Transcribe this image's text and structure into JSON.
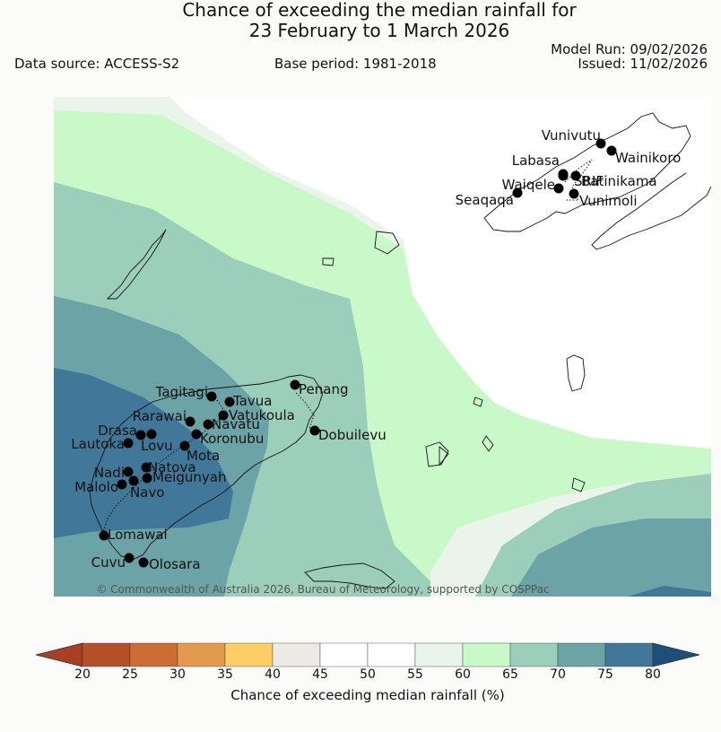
{
  "title": {
    "line1": "Chance of exceeding the median rainfall for",
    "line2": "23 February to 1 March 2026"
  },
  "header": {
    "data_source": "Data source: ACCESS-S2",
    "base_period": "Base period: 1981-2018",
    "model_run": "Model Run: 09/02/2026",
    "issued": "Issued: 11/02/2026"
  },
  "map": {
    "copyright": "© Commonwealth of Australia 2026, Bureau of Meteorology, supported by COSPPac",
    "band_colors": {
      "c50_55": "#ffffff",
      "c55_60": "#ebf4ea",
      "c60_65": "#c9f9c8",
      "c65_70": "#9ccfbb",
      "c70_75": "#6ba3a6",
      "c75_80": "#417899"
    },
    "stations": [
      "Vunivutu",
      "Wainikoro",
      "Labasa",
      "Waiqele",
      "SRIF",
      "Batinikama",
      "Seaqaqa",
      "Vunimoli",
      "Tagitagi",
      "Tavua",
      "Penang",
      "Vatukoula",
      "Rarawai",
      "Navatu",
      "Drasa",
      "Koronubu",
      "Lautoka",
      "Lovu",
      "Mota",
      "Dobuilevu",
      "Natova",
      "Nadi",
      "Meigunyah",
      "Malolo",
      "Navo",
      "Lomawai",
      "Cuvu",
      "Olosara"
    ]
  },
  "colorbar": {
    "label": "Chance of exceeding median rainfall (%)",
    "ticks": [
      "20",
      "25",
      "30",
      "35",
      "40",
      "45",
      "50",
      "55",
      "60",
      "65",
      "70",
      "75",
      "80"
    ],
    "colors": [
      "#a83e23",
      "#b5502a",
      "#cd6c33",
      "#e39a4e",
      "#fdce66",
      "#ede9e5",
      "#ffffff",
      "#ffffff",
      "#ebf4ea",
      "#c9f9c8",
      "#9ccfbb",
      "#6ba3a6",
      "#417899",
      "#1d4f7b"
    ]
  }
}
